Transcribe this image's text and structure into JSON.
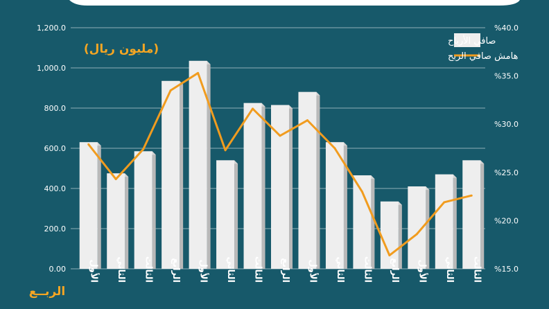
{
  "colors": {
    "background": "#17596a",
    "bar_front": "#eeeeee",
    "bar_side": "#b9b9b9",
    "bar_top": "#d4d4d4",
    "line": "#f19c1f",
    "accent_text": "#f5a623",
    "grid": "#8fb0b8",
    "tick_text": "#ffffff"
  },
  "chart_data": {
    "type": "bar",
    "unit_label": "(مليون ريال)",
    "xlabel": "الربــع",
    "categories": [
      "الأول",
      "الثاني",
      "الثالث",
      "الرابع",
      "الأول",
      "الثاني",
      "الثالث",
      "الرابع",
      "الأول",
      "الثاني",
      "الثالث",
      "الرابع",
      "الأول",
      "الثاني",
      "الثالث"
    ],
    "left_axis": {
      "ylim": [
        0,
        1200
      ],
      "ticks": [
        "0.00",
        "200.0",
        "400.0",
        "600.0",
        "800.0",
        "1,000.0",
        "1,200.0"
      ]
    },
    "right_axis": {
      "ylim": [
        15,
        40
      ],
      "ticks": [
        "%15.0",
        "%20.0",
        "%25.0",
        "%30.0",
        "%35.0",
        "%40.0"
      ]
    },
    "series": [
      {
        "name": "صافي الأرباح",
        "type": "bar",
        "axis": "left",
        "values": [
          630,
          475,
          585,
          935,
          1035,
          540,
          825,
          815,
          880,
          630,
          465,
          335,
          410,
          470,
          540
        ]
      },
      {
        "name": "هامش صافي الربح",
        "type": "line",
        "axis": "right",
        "values": [
          27.9,
          24.3,
          27.4,
          33.5,
          35.3,
          27.3,
          31.6,
          28.8,
          30.4,
          27.5,
          23.0,
          16.4,
          18.6,
          21.9,
          22.6
        ]
      }
    ],
    "grid": true,
    "legend_position": "top-right"
  }
}
